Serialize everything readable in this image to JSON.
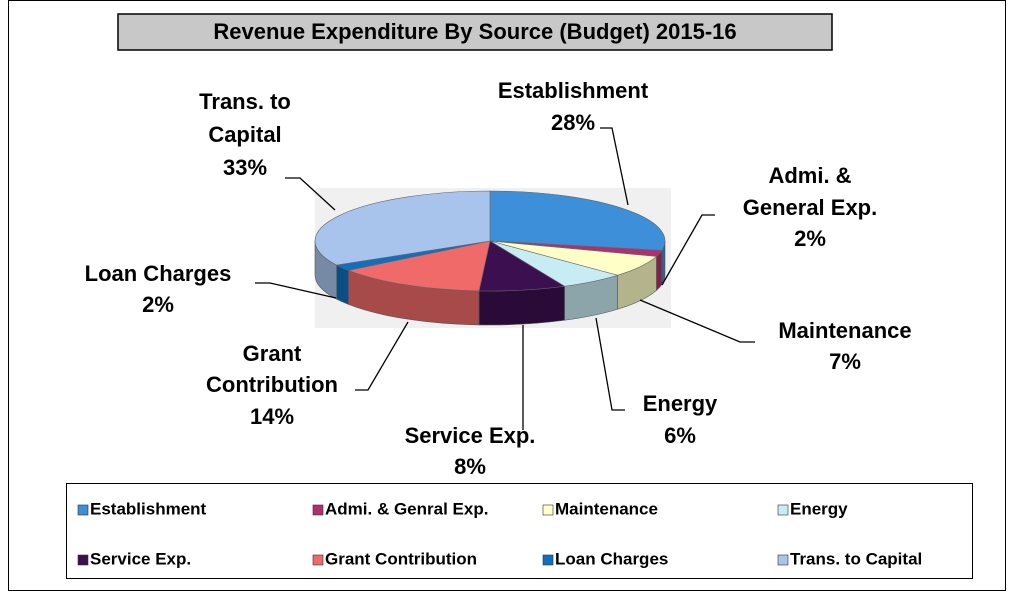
{
  "chart_data": {
    "type": "pie",
    "title": "Revenue Expenditure By Source (Budget) 2015-16",
    "categories": [
      "Establishment",
      "Admi. & Genral Exp.",
      "Maintenance",
      "Energy",
      "Service Exp.",
      "Grant Contribution",
      "Loan Charges",
      "Trans. to Capital"
    ],
    "slice_labels": [
      [
        "Establishment"
      ],
      [
        "Admi. &",
        "General Exp."
      ],
      [
        "Maintenance"
      ],
      [
        "Energy"
      ],
      [
        "Service Exp."
      ],
      [
        "Grant",
        "Contribution"
      ],
      [
        "Loan Charges"
      ],
      [
        "Trans. to",
        "Capital"
      ]
    ],
    "values": [
      28,
      2,
      7,
      6,
      8,
      14,
      2,
      33
    ],
    "value_labels": [
      "28%",
      "2%",
      "7%",
      "6%",
      "8%",
      "14%",
      "2%",
      "33%"
    ],
    "colors": [
      "#3c8fd8",
      "#b0306e",
      "#ffffc8",
      "#c8ecf4",
      "#3c1050",
      "#f06a6a",
      "#1070c0",
      "#a8c4ec"
    ],
    "legend": "bottom"
  }
}
